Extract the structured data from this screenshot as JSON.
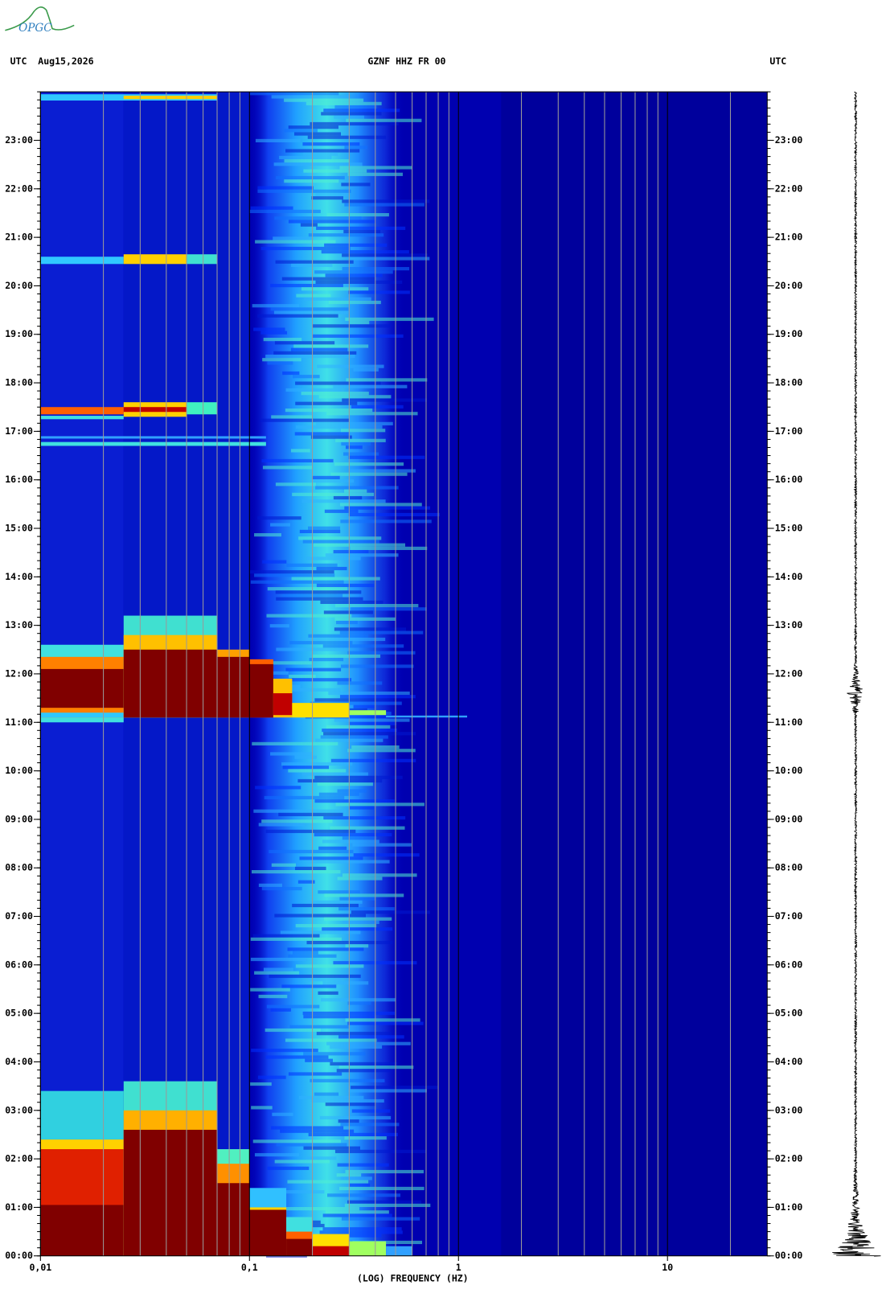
{
  "logo": "OPGC",
  "chart_data": {
    "type": "spectrogram",
    "title": "GZNF HHZ FR 00",
    "header_left": "UTC  Aug15,2026",
    "header_right": "UTC",
    "x_label": "(LOG) FREQUENCY (HZ)",
    "x_scale": "log",
    "xlim": [
      0.01,
      30
    ],
    "xticks": [
      {
        "value": 0.01,
        "label": "0,01"
      },
      {
        "value": 0.1,
        "label": "0,1"
      },
      1,
      10
    ],
    "ylim": [
      0,
      24
    ],
    "yticks": [
      {
        "value": 0,
        "label": "00:00"
      },
      {
        "value": 1,
        "label": "01:00"
      },
      {
        "value": 2,
        "label": "02:00"
      },
      {
        "value": 3,
        "label": "03:00"
      },
      {
        "value": 4,
        "label": "04:00"
      },
      {
        "value": 5,
        "label": "05:00"
      },
      {
        "value": 6,
        "label": "06:00"
      },
      {
        "value": 7,
        "label": "07:00"
      },
      {
        "value": 8,
        "label": "08:00"
      },
      {
        "value": 9,
        "label": "09:00"
      },
      {
        "value": 10,
        "label": "10:00"
      },
      {
        "value": 11,
        "label": "11:00"
      },
      {
        "value": 12,
        "label": "12:00"
      },
      {
        "value": 13,
        "label": "13:00"
      },
      {
        "value": 14,
        "label": "14:00"
      },
      {
        "value": 15,
        "label": "15:00"
      },
      {
        "value": 16,
        "label": "16:00"
      },
      {
        "value": 17,
        "label": "17:00"
      },
      {
        "value": 18,
        "label": "18:00"
      },
      {
        "value": 19,
        "label": "19:00"
      },
      {
        "value": 20,
        "label": "20:00"
      },
      {
        "value": 21,
        "label": "21:00"
      },
      {
        "value": 22,
        "label": "22:00"
      },
      {
        "value": 23,
        "label": "23:00"
      }
    ],
    "grid": true
  }
}
